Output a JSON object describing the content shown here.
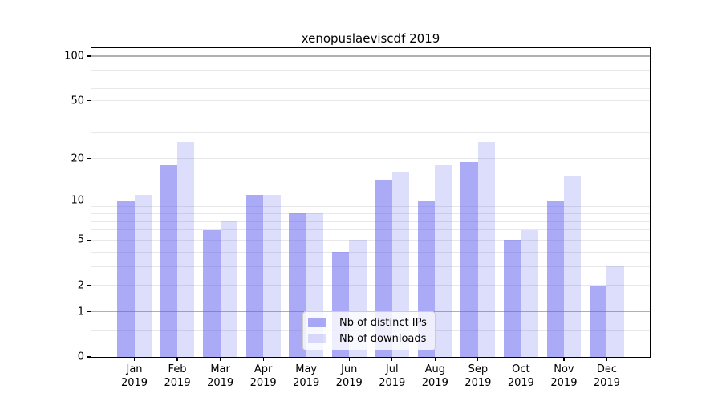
{
  "title": "xenopuslaeviscdf 2019",
  "chart_data": {
    "type": "bar",
    "title": "xenopuslaeviscdf 2019",
    "categories": [
      "Jan",
      "Feb",
      "Mar",
      "Apr",
      "May",
      "Jun",
      "Jul",
      "Aug",
      "Sep",
      "Oct",
      "Nov",
      "Dec"
    ],
    "year_label": "2019",
    "series": [
      {
        "name": "Nb of distinct IPs",
        "color": "rgba(85,85,238,0.5)",
        "values": [
          10,
          18,
          6,
          11,
          8,
          4,
          14,
          10,
          19,
          5,
          10,
          2
        ]
      },
      {
        "name": "Nb of downloads",
        "color": "rgba(85,85,238,0.2)",
        "values": [
          11,
          26,
          7,
          11,
          8,
          5,
          16,
          18,
          26,
          6,
          15,
          3
        ]
      }
    ],
    "xlabel": "",
    "ylabel": "",
    "yscale": "log1p",
    "ylim": [
      0,
      113.2
    ],
    "yticks": [
      0,
      1,
      2,
      5,
      10,
      20,
      50,
      100
    ],
    "major_gridlines": [
      1,
      10,
      100
    ],
    "minor_gridlines": [
      0.5,
      2,
      3,
      4,
      5,
      6,
      7,
      8,
      9,
      20,
      30,
      40,
      50,
      60,
      70,
      80,
      90
    ],
    "grid": true,
    "legend_position": "inside lower-center"
  },
  "colors": {
    "bar_distinct_ips": "rgba(85,85,238,0.5)",
    "bar_downloads": "rgba(85,85,238,0.2)",
    "major_grid": "#b0b0b0",
    "minor_grid": "#e8e8e8",
    "spine": "#000000",
    "text": "#000000",
    "legend_border": "#cccccc",
    "legend_bg": "rgba(255,255,255,0.8)"
  },
  "legend": {
    "items": [
      {
        "label": "Nb of distinct IPs"
      },
      {
        "label": "Nb of downloads"
      }
    ]
  }
}
